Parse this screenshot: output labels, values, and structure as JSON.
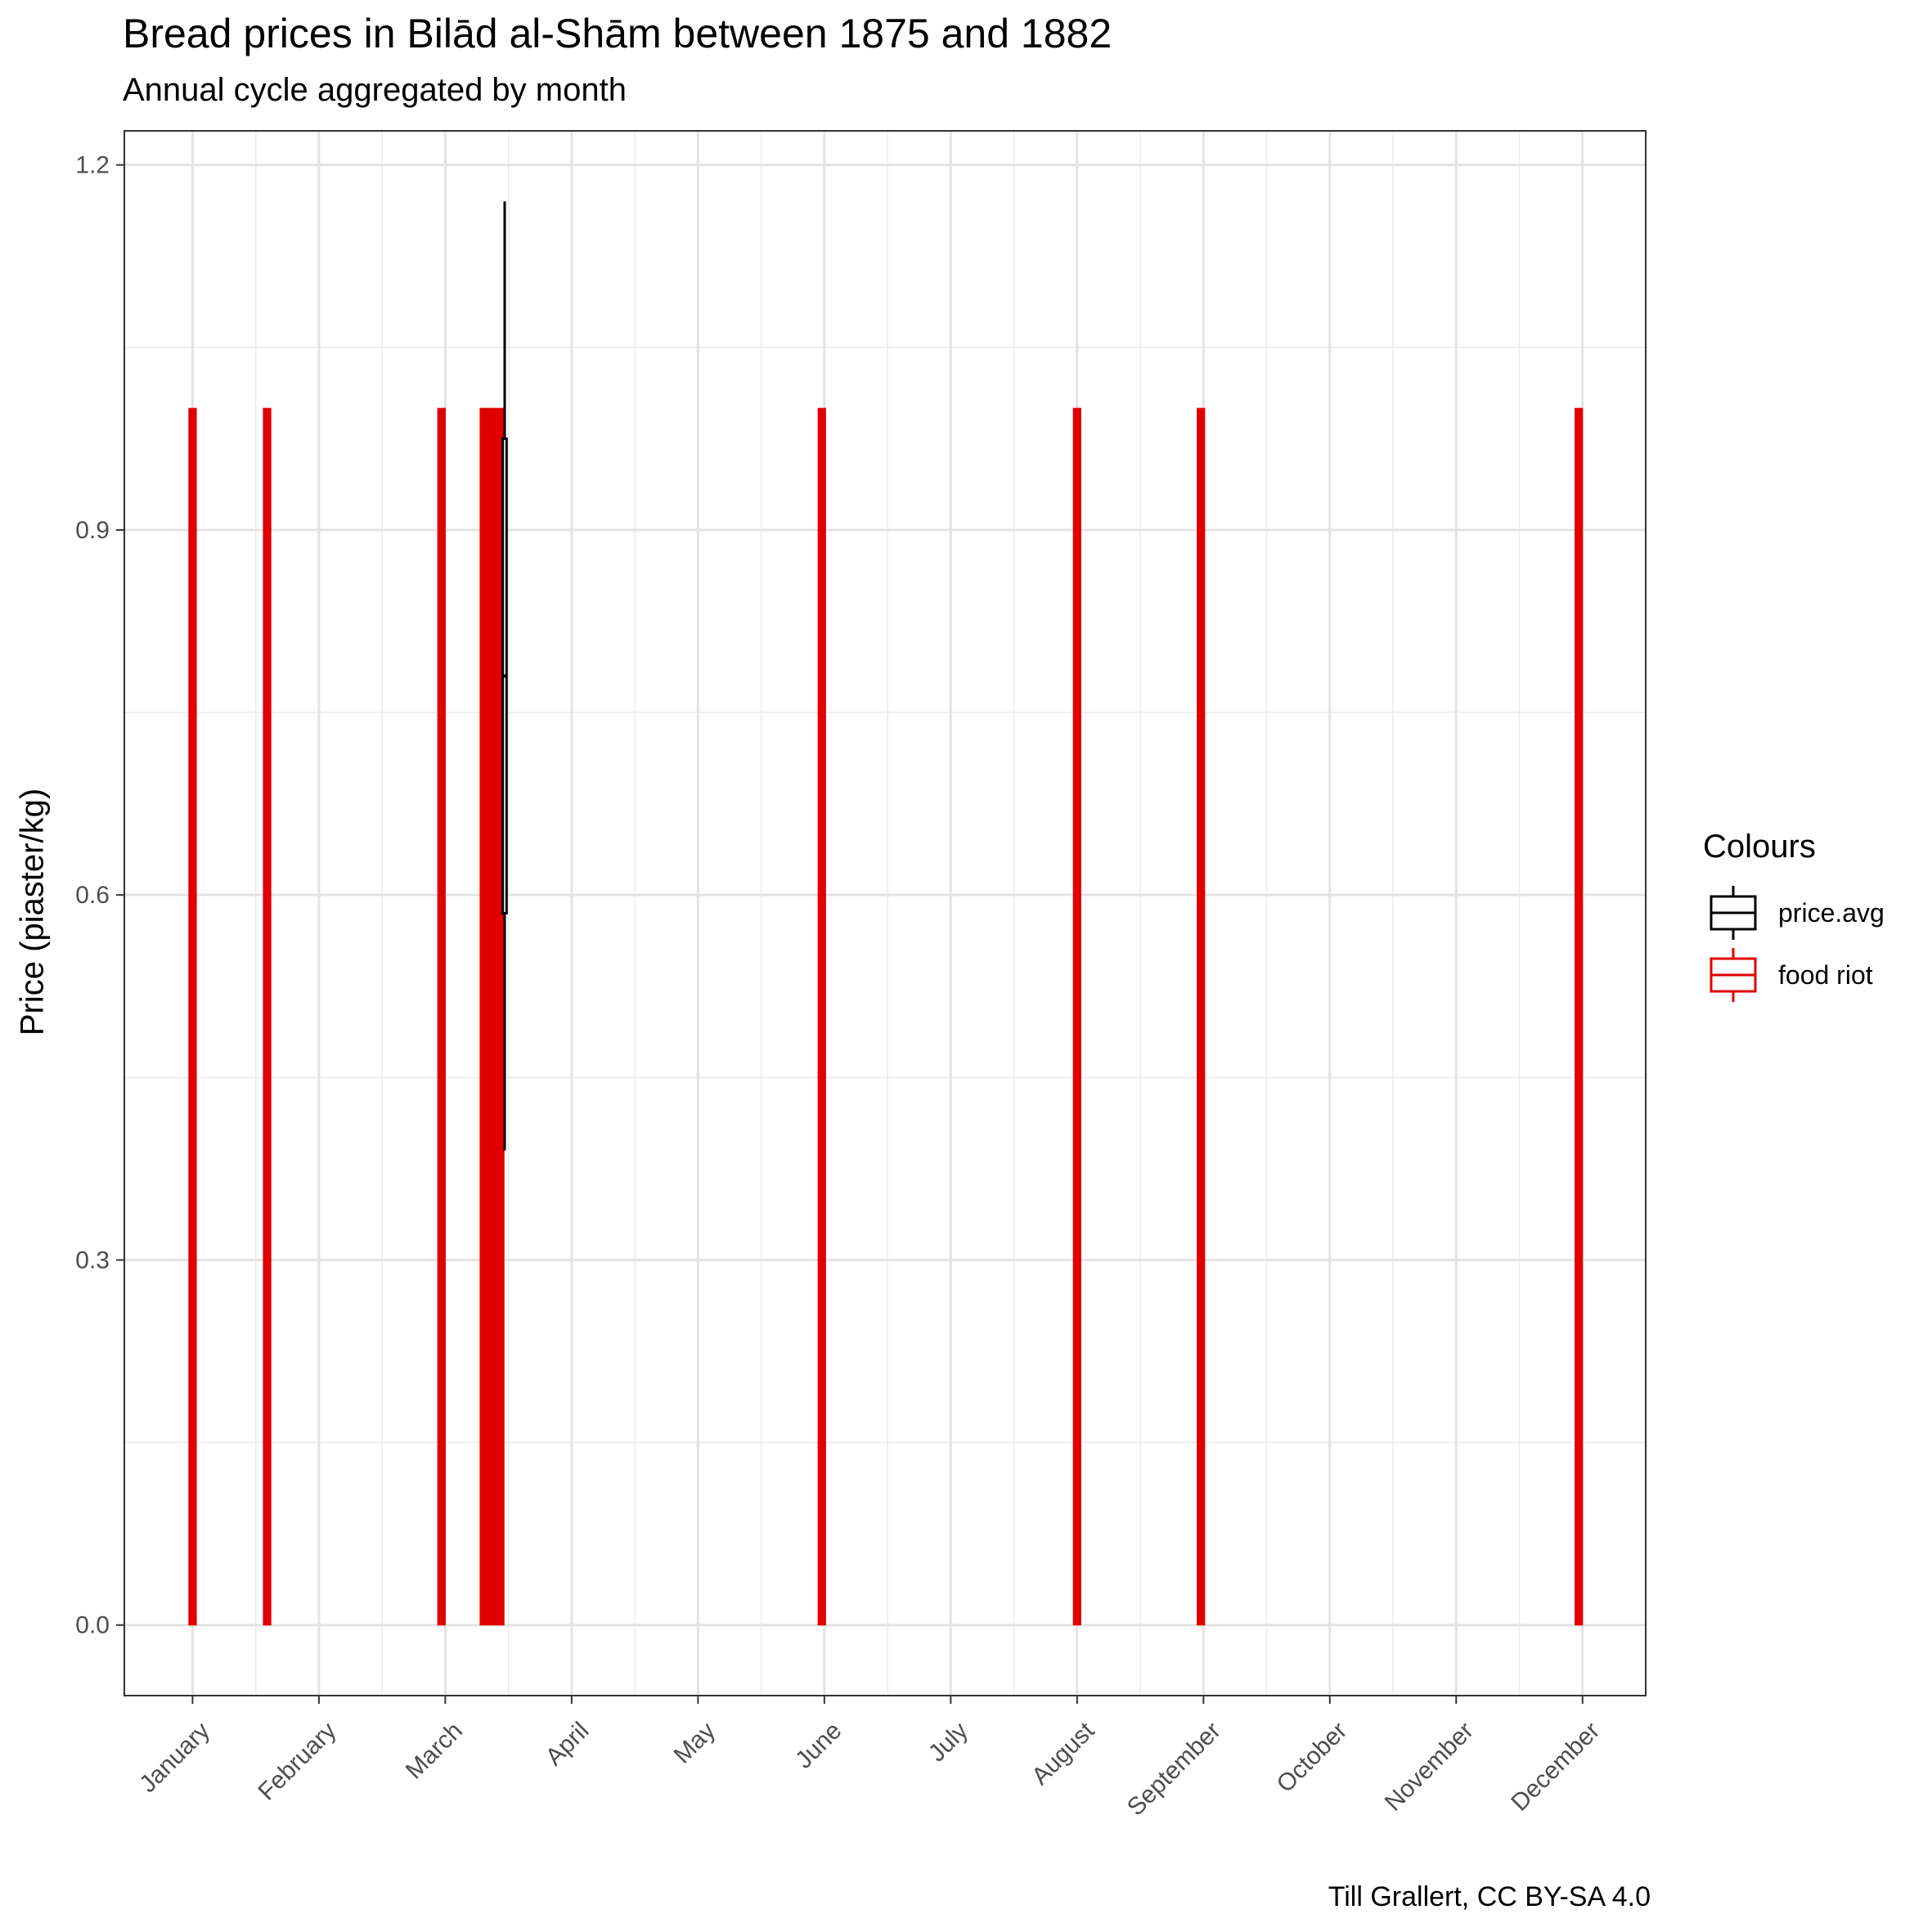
{
  "chart_data": {
    "type": "boxplot",
    "title": "Bread prices in Bilād al-Shām between 1875 and 1882",
    "subtitle": "Annual cycle aggregated by month",
    "ylabel": "Price (piaster/kg)",
    "xlabel": "",
    "caption": "Till Grallert, CC BY-SA 4.0",
    "x_ticks": [
      "January",
      "February",
      "March",
      "April",
      "May",
      "June",
      "July",
      "August",
      "September",
      "October",
      "November",
      "December"
    ],
    "y_ticks": [
      "0.0",
      "0.3",
      "0.6",
      "0.9",
      "1.2"
    ],
    "ylim": [
      -0.058,
      1.228
    ],
    "xlim": [
      0.46,
      12.5
    ],
    "grid": true,
    "legend": {
      "title": "Colours",
      "position": "right",
      "entries": [
        {
          "label": "price.avg",
          "color": "#000000"
        },
        {
          "label": "food riot",
          "color": "#e00000"
        }
      ]
    },
    "series": [
      {
        "name": "food riot",
        "color": "#e00000",
        "boxes": [
          {
            "x": 1.0,
            "width": 0.06,
            "low": 0.0,
            "high": 1.0
          },
          {
            "x": 1.59,
            "width": 0.06,
            "low": 0.0,
            "high": 1.0
          },
          {
            "x": 2.97,
            "width": 0.06,
            "low": 0.0,
            "high": 1.0
          },
          {
            "x": 3.37,
            "width": 0.19,
            "low": 0.0,
            "high": 1.0
          },
          {
            "x": 5.98,
            "width": 0.06,
            "low": 0.0,
            "high": 1.0
          },
          {
            "x": 8.0,
            "width": 0.06,
            "low": 0.0,
            "high": 1.0
          },
          {
            "x": 8.98,
            "width": 0.06,
            "low": 0.0,
            "high": 1.0
          },
          {
            "x": 11.97,
            "width": 0.06,
            "low": 0.0,
            "high": 1.0
          }
        ]
      },
      {
        "name": "price.avg",
        "color": "#000000",
        "boxes": [
          {
            "x": 3.47,
            "width": 0.03,
            "min": 0.39,
            "q1": 0.585,
            "median": 0.78,
            "q3": 0.975,
            "max": 1.17
          }
        ]
      }
    ]
  }
}
